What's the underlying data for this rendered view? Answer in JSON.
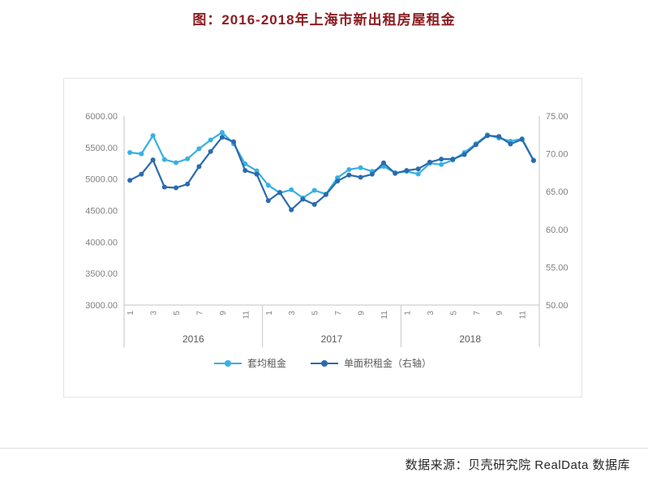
{
  "page": {
    "title": "图：2016-2018年上海市新出租房屋租金",
    "title_color": "#8C1D22",
    "footer": "数据来源：贝壳研究院 RealData 数据库"
  },
  "chart_data": {
    "type": "line",
    "title": "图：2016-2018年上海市新出租房屋租金",
    "grid": false,
    "legend_position": "bottom",
    "years": [
      "2016",
      "2017",
      "2018"
    ],
    "month_tick_labels": [
      "1",
      "3",
      "5",
      "7",
      "9",
      "11"
    ],
    "left_axis": {
      "min": 3000,
      "max": 6000,
      "step": 500,
      "tick_labels": [
        "6000.00",
        "5500.00",
        "5000.00",
        "4500.00",
        "4000.00",
        "3500.00",
        "3000.00"
      ]
    },
    "right_axis": {
      "min": 50,
      "max": 75,
      "step": 5,
      "tick_labels": [
        "75.00",
        "70.00",
        "65.00",
        "60.00",
        "55.00",
        "50.00"
      ]
    },
    "series": [
      {
        "name": "套均租金",
        "axis": "left",
        "color": "#38B0E3",
        "values": [
          5420,
          5400,
          5690,
          5310,
          5260,
          5320,
          5480,
          5620,
          5740,
          5560,
          5240,
          5130,
          4900,
          4780,
          4830,
          4700,
          4820,
          4760,
          5020,
          5150,
          5180,
          5120,
          5200,
          5100,
          5120,
          5080,
          5250,
          5230,
          5300,
          5420,
          5560,
          5700,
          5650,
          5600,
          5640,
          5300
        ]
      },
      {
        "name": "单面积租金（右轴）",
        "axis": "right",
        "color": "#2A6BAD",
        "values": [
          66.5,
          67.3,
          69.2,
          65.6,
          65.5,
          66.0,
          68.3,
          70.3,
          72.2,
          71.6,
          67.8,
          67.3,
          63.8,
          64.9,
          62.6,
          64.0,
          63.3,
          64.6,
          66.4,
          67.2,
          66.9,
          67.3,
          68.8,
          67.4,
          67.8,
          68.0,
          68.9,
          69.3,
          69.3,
          69.9,
          71.2,
          72.4,
          72.3,
          71.3,
          71.9,
          69.1
        ]
      }
    ]
  }
}
